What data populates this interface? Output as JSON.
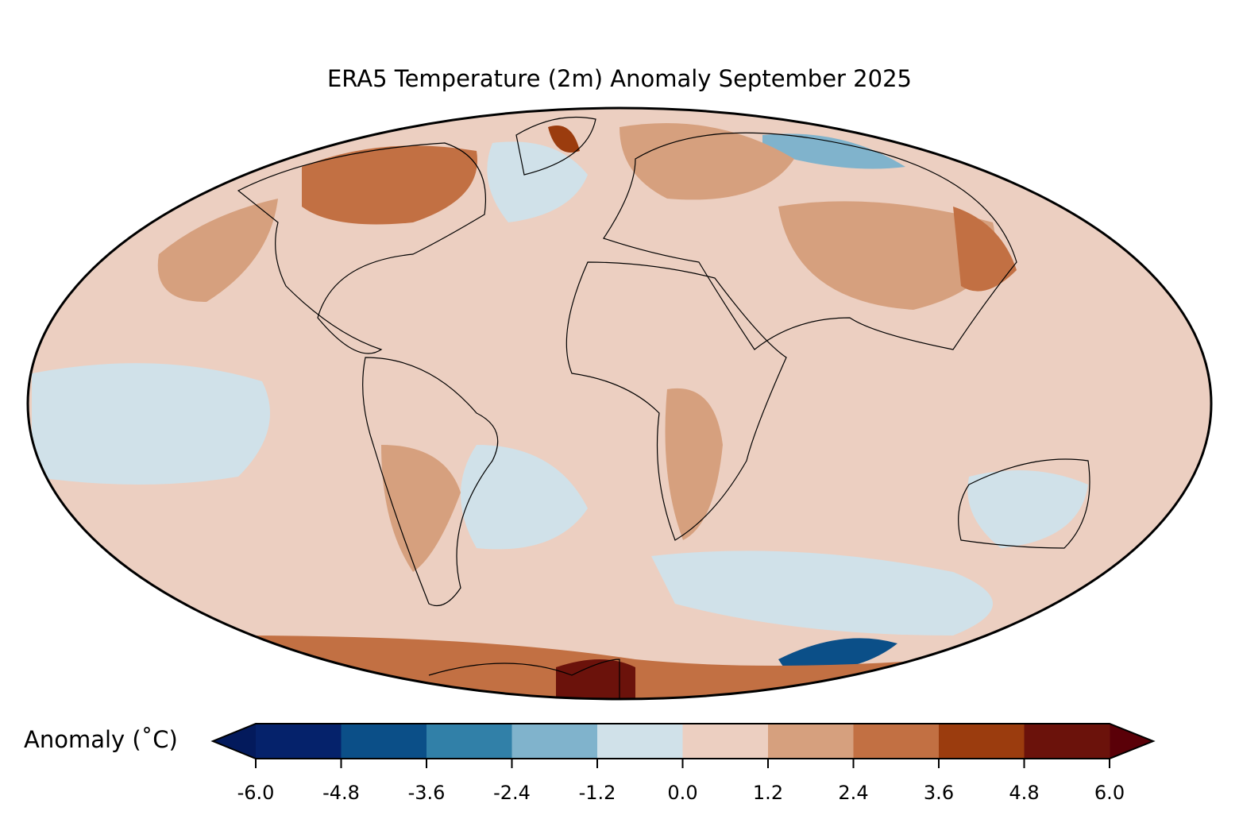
{
  "title": "ERA5 Temperature (2m) Anomaly September 2025",
  "colorbar": {
    "label": "Anomaly (˚C)",
    "ticks": [
      "-6.0",
      "-4.8",
      "-3.6",
      "-2.4",
      "-1.2",
      "0.0",
      "1.2",
      "2.4",
      "3.6",
      "4.8",
      "6.0"
    ],
    "extend": "both",
    "under_color": "#031a5c",
    "over_color": "#5a0008",
    "colors": [
      "#05226b",
      "#0b4f88",
      "#3180a8",
      "#80b3cc",
      "#d0e1e9",
      "#eccfc1",
      "#d6a07e",
      "#c27043",
      "#9b3c0e",
      "#6b120b"
    ]
  },
  "map": {
    "projection": "Mollweide",
    "background_color": "#eccfc1",
    "coastline_color": "#000000",
    "border_color": "#808080"
  }
}
